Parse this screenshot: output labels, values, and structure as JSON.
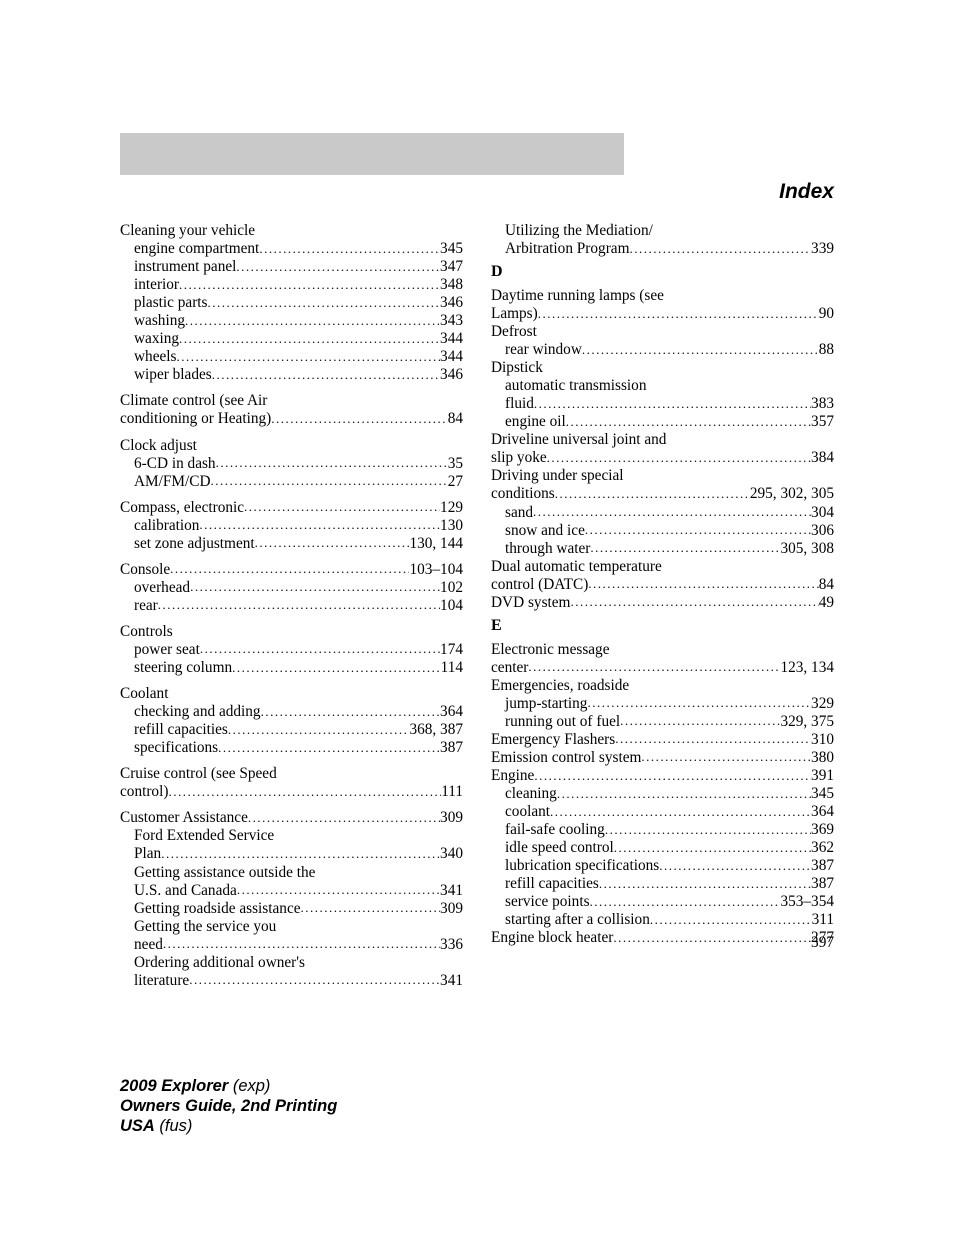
{
  "header": {
    "title": "Index"
  },
  "page_number": "397",
  "footer": {
    "line1_bold": "2009 Explorer",
    "line1_italic": " (exp)",
    "line2_bold": "Owners Guide, 2nd Printing",
    "line3_bold": "USA",
    "line3_italic": " (fus)"
  },
  "left_column": [
    {
      "type": "head",
      "label": "Cleaning your vehicle"
    },
    {
      "type": "sub",
      "label": "engine compartment",
      "page": "345"
    },
    {
      "type": "sub",
      "label": "instrument panel",
      "page": "347"
    },
    {
      "type": "sub",
      "label": "interior",
      "page": "348"
    },
    {
      "type": "sub",
      "label": "plastic parts",
      "page": "346"
    },
    {
      "type": "sub",
      "label": "washing",
      "page": "343"
    },
    {
      "type": "sub",
      "label": "waxing",
      "page": "344"
    },
    {
      "type": "sub",
      "label": "wheels",
      "page": "344"
    },
    {
      "type": "sub",
      "label": "wiper blades",
      "page": "346"
    },
    {
      "type": "gap"
    },
    {
      "type": "head",
      "label": "Climate control (see Air"
    },
    {
      "type": "line",
      "label": "conditioning or Heating)",
      "page": "84"
    },
    {
      "type": "gap"
    },
    {
      "type": "head",
      "label": "Clock adjust"
    },
    {
      "type": "sub",
      "label": "6-CD in dash",
      "page": "35"
    },
    {
      "type": "sub",
      "label": "AM/FM/CD",
      "page": "27"
    },
    {
      "type": "gap"
    },
    {
      "type": "line",
      "label": "Compass, electronic",
      "page": "129"
    },
    {
      "type": "sub",
      "label": "calibration",
      "page": "130"
    },
    {
      "type": "sub",
      "label": "set zone adjustment",
      "page": "130, 144"
    },
    {
      "type": "gap"
    },
    {
      "type": "line",
      "label": "Console",
      "page": "103–104"
    },
    {
      "type": "sub",
      "label": "overhead",
      "page": "102"
    },
    {
      "type": "sub",
      "label": "rear",
      "page": "104"
    },
    {
      "type": "gap"
    },
    {
      "type": "head",
      "label": "Controls"
    },
    {
      "type": "sub",
      "label": "power seat",
      "page": "174"
    },
    {
      "type": "sub",
      "label": "steering column",
      "page": "114"
    },
    {
      "type": "gap"
    },
    {
      "type": "head",
      "label": "Coolant"
    },
    {
      "type": "sub",
      "label": "checking and adding",
      "page": "364"
    },
    {
      "type": "sub",
      "label": "refill capacities",
      "page": "368, 387"
    },
    {
      "type": "sub",
      "label": "specifications",
      "page": "387"
    },
    {
      "type": "gap"
    },
    {
      "type": "head",
      "label": "Cruise control (see Speed"
    },
    {
      "type": "line",
      "label": "control)",
      "page": "111"
    },
    {
      "type": "gap"
    },
    {
      "type": "line",
      "label": "Customer Assistance",
      "page": "309"
    },
    {
      "type": "subhead",
      "label": "Ford Extended Service"
    },
    {
      "type": "sub",
      "label": "Plan",
      "page": "340"
    },
    {
      "type": "subhead",
      "label": "Getting assistance outside the"
    },
    {
      "type": "sub",
      "label": "U.S. and Canada",
      "page": "341"
    },
    {
      "type": "sub",
      "label": "Getting roadside assistance",
      "page": "309"
    },
    {
      "type": "subhead",
      "label": "Getting the service you"
    },
    {
      "type": "sub",
      "label": "need",
      "page": "336"
    },
    {
      "type": "subhead",
      "label": "Ordering additional owner's"
    },
    {
      "type": "sub",
      "label": "literature",
      "page": "341"
    }
  ],
  "right_column": [
    {
      "type": "subhead",
      "label": "Utilizing the Mediation/"
    },
    {
      "type": "sub",
      "label": "Arbitration Program",
      "page": "339"
    },
    {
      "type": "letter",
      "label": "D"
    },
    {
      "type": "head",
      "label": "Daytime running lamps (see"
    },
    {
      "type": "line",
      "label": "Lamps)",
      "page": "90"
    },
    {
      "type": "head",
      "label": "Defrost"
    },
    {
      "type": "sub",
      "label": "rear window",
      "page": "88"
    },
    {
      "type": "head",
      "label": "Dipstick"
    },
    {
      "type": "subhead",
      "label": "automatic transmission"
    },
    {
      "type": "sub",
      "label": "fluid",
      "page": "383"
    },
    {
      "type": "sub",
      "label": "engine oil",
      "page": "357"
    },
    {
      "type": "head",
      "label": "Driveline universal joint and"
    },
    {
      "type": "line",
      "label": "slip yoke",
      "page": "384"
    },
    {
      "type": "head",
      "label": "Driving under special"
    },
    {
      "type": "line",
      "label": "conditions",
      "page": "295, 302, 305"
    },
    {
      "type": "sub",
      "label": "sand",
      "page": "304"
    },
    {
      "type": "sub",
      "label": "snow and ice",
      "page": "306"
    },
    {
      "type": "sub",
      "label": "through water",
      "page": "305, 308"
    },
    {
      "type": "head",
      "label": "Dual automatic temperature"
    },
    {
      "type": "line",
      "label": "control (DATC)",
      "page": "84"
    },
    {
      "type": "line",
      "label": "DVD system",
      "page": "49"
    },
    {
      "type": "letter",
      "label": "E"
    },
    {
      "type": "head",
      "label": "Electronic message"
    },
    {
      "type": "line",
      "label": "center",
      "page": "123, 134"
    },
    {
      "type": "head",
      "label": "Emergencies, roadside"
    },
    {
      "type": "sub",
      "label": "jump-starting",
      "page": "329"
    },
    {
      "type": "sub",
      "label": "running out of fuel",
      "page": "329, 375"
    },
    {
      "type": "line",
      "label": "Emergency Flashers",
      "page": "310"
    },
    {
      "type": "line",
      "label": "Emission control system",
      "page": "380"
    },
    {
      "type": "line",
      "label": "Engine",
      "page": "391"
    },
    {
      "type": "sub",
      "label": "cleaning",
      "page": "345"
    },
    {
      "type": "sub",
      "label": "coolant",
      "page": "364"
    },
    {
      "type": "sub",
      "label": "fail-safe cooling",
      "page": "369"
    },
    {
      "type": "sub",
      "label": "idle speed control",
      "page": "362"
    },
    {
      "type": "sub",
      "label": "lubrication specifications",
      "page": "387"
    },
    {
      "type": "sub",
      "label": "refill capacities",
      "page": "387"
    },
    {
      "type": "sub",
      "label": "service points",
      "page": "353–354"
    },
    {
      "type": "sub",
      "label": "starting after a collision",
      "page": "311"
    },
    {
      "type": "line",
      "label": "Engine block heater",
      "page": "277"
    }
  ]
}
